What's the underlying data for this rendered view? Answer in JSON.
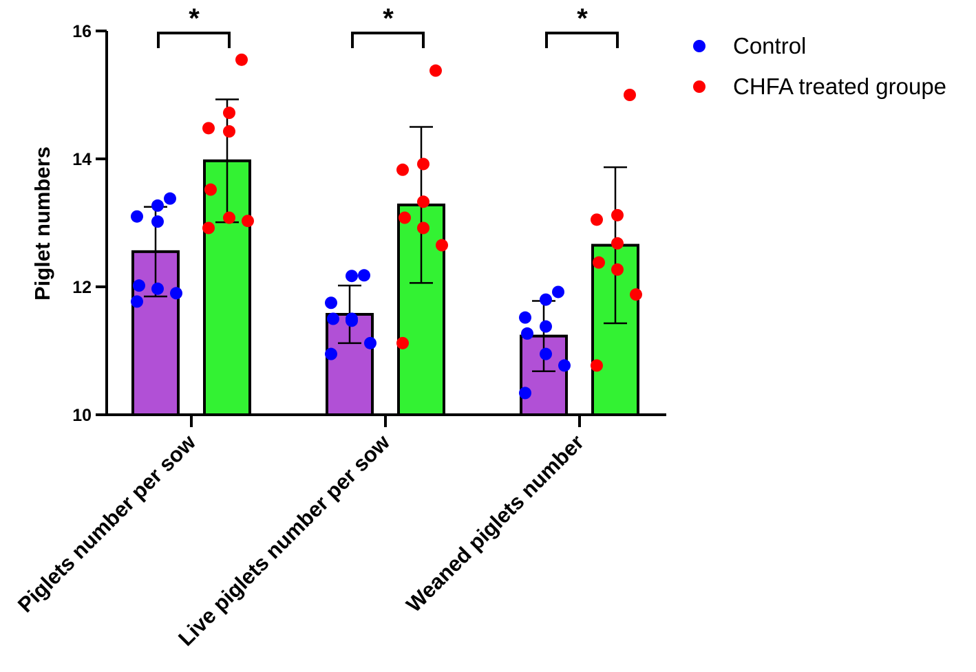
{
  "chart_data": {
    "type": "bar",
    "title": "",
    "xlabel": "",
    "ylabel": "Piglet numbers",
    "ylim": [
      10,
      16
    ],
    "yticks": [
      "10",
      "12",
      "14",
      "16"
    ],
    "categories": [
      "Piglets number per sow",
      "Live piglets number per sow",
      "Weaned piglets number"
    ],
    "significance": [
      "*",
      "*",
      "*"
    ],
    "legend_position": "top-right",
    "series": [
      {
        "name": "Control",
        "bar_color": "#b150d6",
        "point_color": "#0000ff",
        "means": [
          12.55,
          11.57,
          11.23
        ],
        "errors": [
          0.7,
          0.45,
          0.55
        ],
        "points": [
          [
            13.38,
            13.27,
            13.1,
            13.02,
            12.02,
            11.97,
            11.9,
            11.77
          ],
          [
            12.18,
            12.17,
            11.75,
            11.5,
            11.5,
            11.47,
            11.12,
            10.95
          ],
          [
            11.92,
            11.8,
            11.52,
            11.38,
            11.27,
            10.95,
            10.77,
            10.34
          ]
        ]
      },
      {
        "name": "CHFA treated groupe",
        "bar_color": "#33f233",
        "point_color": "#ff0000",
        "means": [
          13.97,
          13.28,
          12.65
        ],
        "errors": [
          0.96,
          1.22,
          1.22
        ],
        "points": [
          [
            15.55,
            14.72,
            14.48,
            14.43,
            13.52,
            13.08,
            13.03,
            12.92
          ],
          [
            15.38,
            13.92,
            13.83,
            13.33,
            13.08,
            12.92,
            12.65,
            11.12
          ],
          [
            15.0,
            13.12,
            13.05,
            12.68,
            12.38,
            12.27,
            11.88,
            10.77
          ]
        ]
      }
    ]
  }
}
